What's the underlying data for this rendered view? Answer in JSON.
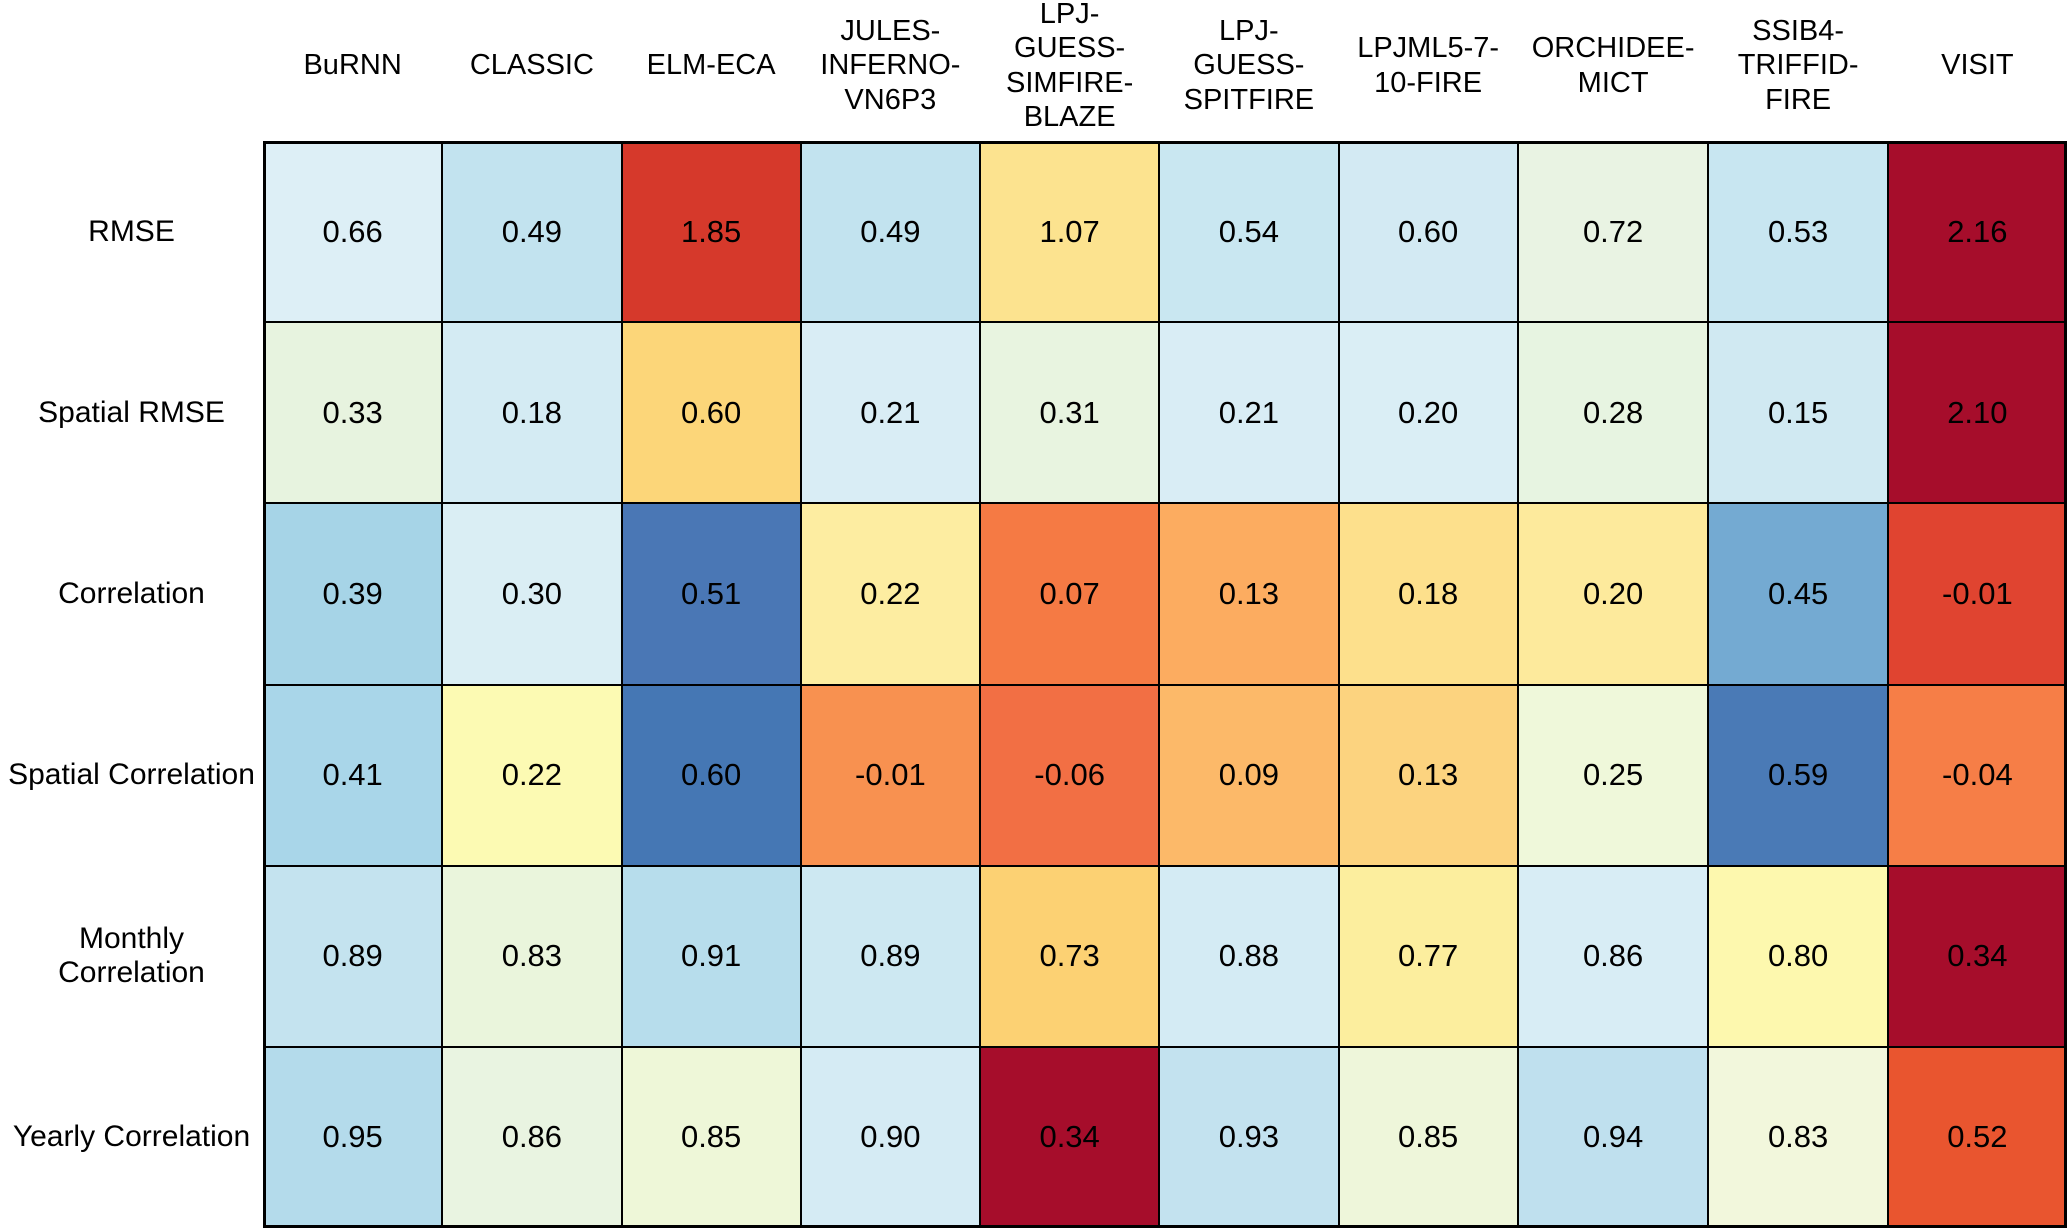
{
  "chart_data": {
    "type": "heatmap",
    "title": "",
    "xlabel": "",
    "ylabel": "",
    "legend": "none",
    "grid": "cell-borders-black",
    "columns": [
      "BuRNN",
      "CLASSIC",
      "ELM-ECA",
      "JULES-INFERNO-VN6P3",
      "LPJ-GUESS-SIMFIRE-BLAZE",
      "LPJ-GUESS-SPITFIRE",
      "LPJML5-7-10-FIRE",
      "ORCHIDEE-MICT",
      "SSIB4-TRIFFID-FIRE",
      "VISIT"
    ],
    "rows": [
      {
        "label": "RMSE",
        "values": [
          0.66,
          0.49,
          1.85,
          0.49,
          1.07,
          0.54,
          0.6,
          0.72,
          0.53,
          2.16
        ],
        "display": [
          "0.66",
          "0.49",
          "1.85",
          "0.49",
          "1.07",
          "0.54",
          "0.60",
          "0.72",
          "0.53",
          "2.16"
        ],
        "colors": [
          "#ddeff6",
          "#c2e3ef",
          "#d6392b",
          "#c2e3ef",
          "#fce38f",
          "#c9e7f1",
          "#d3eaf3",
          "#e9f3e3",
          "#c8e6f1",
          "#a60d2b"
        ]
      },
      {
        "label": "Spatial RMSE",
        "values": [
          0.33,
          0.18,
          0.6,
          0.21,
          0.31,
          0.21,
          0.2,
          0.28,
          0.15,
          2.1
        ],
        "display": [
          "0.33",
          "0.18",
          "0.60",
          "0.21",
          "0.31",
          "0.21",
          "0.20",
          "0.28",
          "0.15",
          "2.10"
        ],
        "colors": [
          "#e7f3df",
          "#d4ebf3",
          "#fcd679",
          "#d9edf5",
          "#e8f4e0",
          "#d9edf5",
          "#daeef5",
          "#e7f4e1",
          "#d0e9f2",
          "#a60d2b"
        ]
      },
      {
        "label": "Correlation",
        "values": [
          0.39,
          0.3,
          0.51,
          0.22,
          0.07,
          0.13,
          0.18,
          0.2,
          0.45,
          -0.01
        ],
        "display": [
          "0.39",
          "0.30",
          "0.51",
          "0.22",
          "0.07",
          "0.13",
          "0.18",
          "0.20",
          "0.45",
          "-0.01"
        ],
        "colors": [
          "#a6d4e7",
          "#daeef4",
          "#4a77b5",
          "#fdeda1",
          "#f57a44",
          "#fcac60",
          "#fde08c",
          "#fdea9c",
          "#74aad2",
          "#e04430"
        ]
      },
      {
        "label": "Spatial Correlation",
        "values": [
          0.41,
          0.22,
          0.6,
          -0.01,
          -0.06,
          0.09,
          0.13,
          0.25,
          0.59,
          -0.04
        ],
        "display": [
          "0.41",
          "0.22",
          "0.60",
          "-0.01",
          "-0.06",
          "0.09",
          "0.13",
          "0.25",
          "0.59",
          "-0.04"
        ],
        "colors": [
          "#a9d6e9",
          "#fcfab3",
          "#4577b4",
          "#f89150",
          "#f26f44",
          "#fcb969",
          "#fcd37f",
          "#eff8da",
          "#4a7ab6",
          "#f67e47"
        ]
      },
      {
        "label": "Monthly Correlation",
        "values": [
          0.89,
          0.83,
          0.91,
          0.89,
          0.73,
          0.88,
          0.77,
          0.86,
          0.8,
          0.34
        ],
        "display": [
          "0.89",
          "0.83",
          "0.91",
          "0.89",
          "0.73",
          "0.88",
          "0.77",
          "0.86",
          "0.80",
          "0.34"
        ],
        "colors": [
          "#c4e3ef",
          "#eaf5dc",
          "#b7ddec",
          "#cde8f2",
          "#fcd173",
          "#d4ebf4",
          "#fcee9e",
          "#d8edf5",
          "#fdf8ae",
          "#a60d2b"
        ]
      },
      {
        "label": "Yearly Correlation",
        "values": [
          0.95,
          0.86,
          0.85,
          0.9,
          0.34,
          0.93,
          0.85,
          0.94,
          0.83,
          0.52
        ],
        "display": [
          "0.95",
          "0.86",
          "0.85",
          "0.90",
          "0.34",
          "0.93",
          "0.85",
          "0.94",
          "0.83",
          "0.52"
        ],
        "colors": [
          "#b4dbeb",
          "#e9f4e1",
          "#eef7d8",
          "#d5ebf4",
          "#a60d2b",
          "#c3e2ef",
          "#eef6da",
          "#bfe0ee",
          "#f2f7dc",
          "#e9552f"
        ]
      }
    ],
    "colormap": "RdYlBu",
    "colormap_anchors": {
      "dark_red": "#a60d2b",
      "red": "#d6392b",
      "orange": "#f26f44",
      "light_orange": "#fcac60",
      "pale_yellow": "#fcfab3",
      "pale_green_mid": "#eaf5dc",
      "pale_blue": "#daeef4",
      "light_blue": "#a9d6e9",
      "medium_blue": "#74aad2",
      "blue": "#4577b4"
    },
    "text_color": "#000000",
    "border_color": "#000000"
  }
}
